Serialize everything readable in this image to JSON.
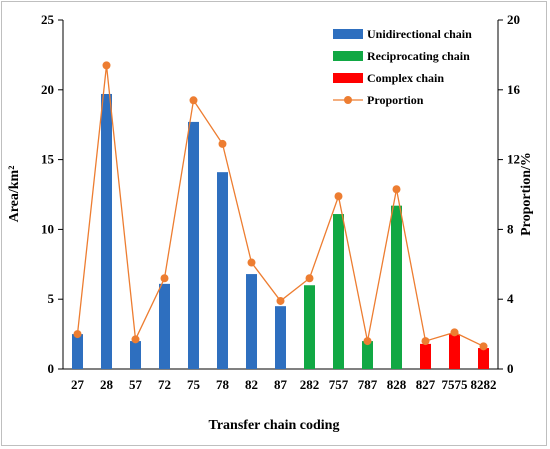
{
  "chart_data": {
    "type": "bar+line",
    "xlabel": "Transfer chain coding",
    "ylabel_left": "Area/km²",
    "ylabel_right": "Proportion/%",
    "ylim_left": [
      0,
      25
    ],
    "ylim_right": [
      0,
      20
    ],
    "yticks_left": [
      "0",
      "5",
      "10",
      "15",
      "20",
      "25"
    ],
    "yticks_right": [
      "0",
      "4",
      "8",
      "12",
      "16",
      "20"
    ],
    "categories": [
      "27",
      "28",
      "57",
      "72",
      "75",
      "78",
      "82",
      "87",
      "282",
      "757",
      "787",
      "828",
      "827",
      "7575",
      "8282"
    ],
    "series": [
      {
        "name": "Unidirectional chain",
        "color": "#2e6fbf",
        "kind": "bar",
        "values": [
          2.5,
          19.7,
          2.0,
          6.1,
          17.7,
          14.1,
          6.8,
          4.5,
          null,
          null,
          null,
          null,
          null,
          null,
          null
        ]
      },
      {
        "name": "Reciprocating chain",
        "color": "#11a844",
        "kind": "bar",
        "values": [
          null,
          null,
          null,
          null,
          null,
          null,
          null,
          null,
          6.0,
          11.1,
          2.0,
          11.7,
          null,
          null,
          null
        ]
      },
      {
        "name": "Complex chain",
        "color": "#ff0000",
        "kind": "bar",
        "values": [
          null,
          null,
          null,
          null,
          null,
          null,
          null,
          null,
          null,
          null,
          null,
          null,
          1.8,
          2.5,
          1.5
        ]
      },
      {
        "name": "Proportion",
        "color": "#ed7d31",
        "kind": "line",
        "axis": "right",
        "values": [
          2.0,
          17.4,
          1.7,
          5.2,
          15.4,
          12.9,
          6.1,
          3.9,
          5.2,
          9.9,
          1.6,
          10.3,
          1.6,
          2.1,
          1.3
        ]
      }
    ],
    "legend": "top-right",
    "grid": false
  }
}
